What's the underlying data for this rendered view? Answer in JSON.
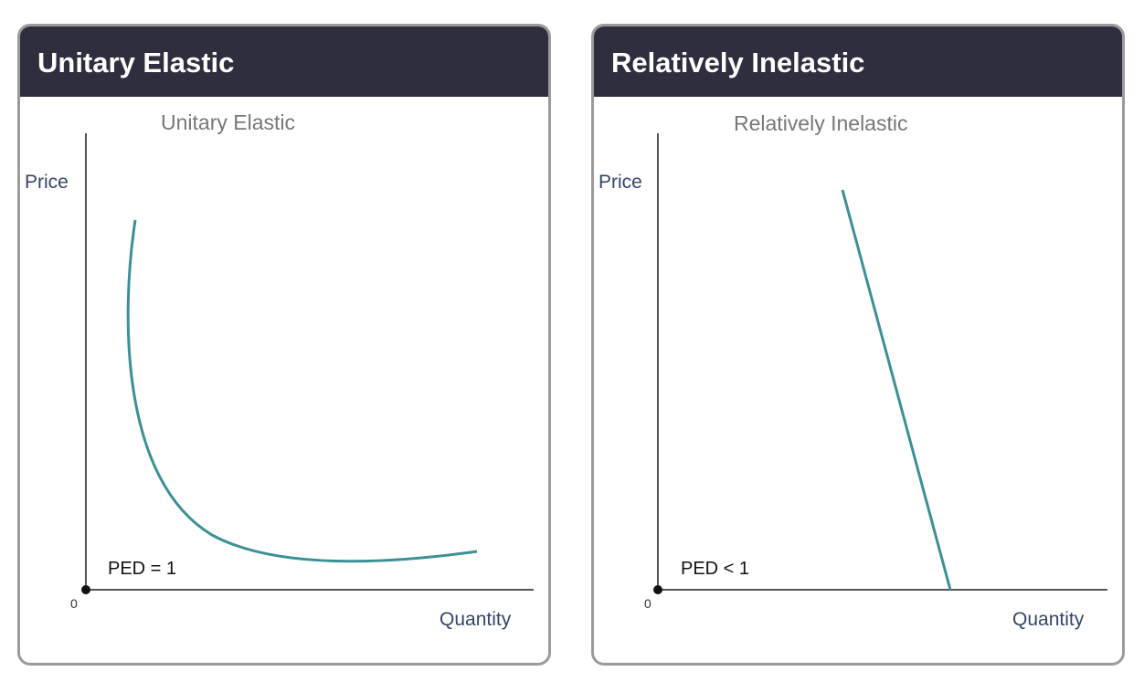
{
  "colors": {
    "header_bg": "#2e2e3f",
    "curve": "#3c8f97",
    "axis": "#555555",
    "axis_label": "#35456a"
  },
  "cards": [
    {
      "header": "Unitary Elastic",
      "diagram_title": "Unitary Elastic",
      "y_axis_label": "Price",
      "x_axis_label": "Quantity",
      "origin_label": "0",
      "ped_label": "PED = 1",
      "curve_shape": "rectangular-hyperbola"
    },
    {
      "header": "Relatively Inelastic",
      "diagram_title": "Relatively Inelastic",
      "y_axis_label": "Price",
      "x_axis_label": "Quantity",
      "origin_label": "0",
      "ped_label": "PED < 1",
      "curve_shape": "steep-straight-line"
    }
  ]
}
